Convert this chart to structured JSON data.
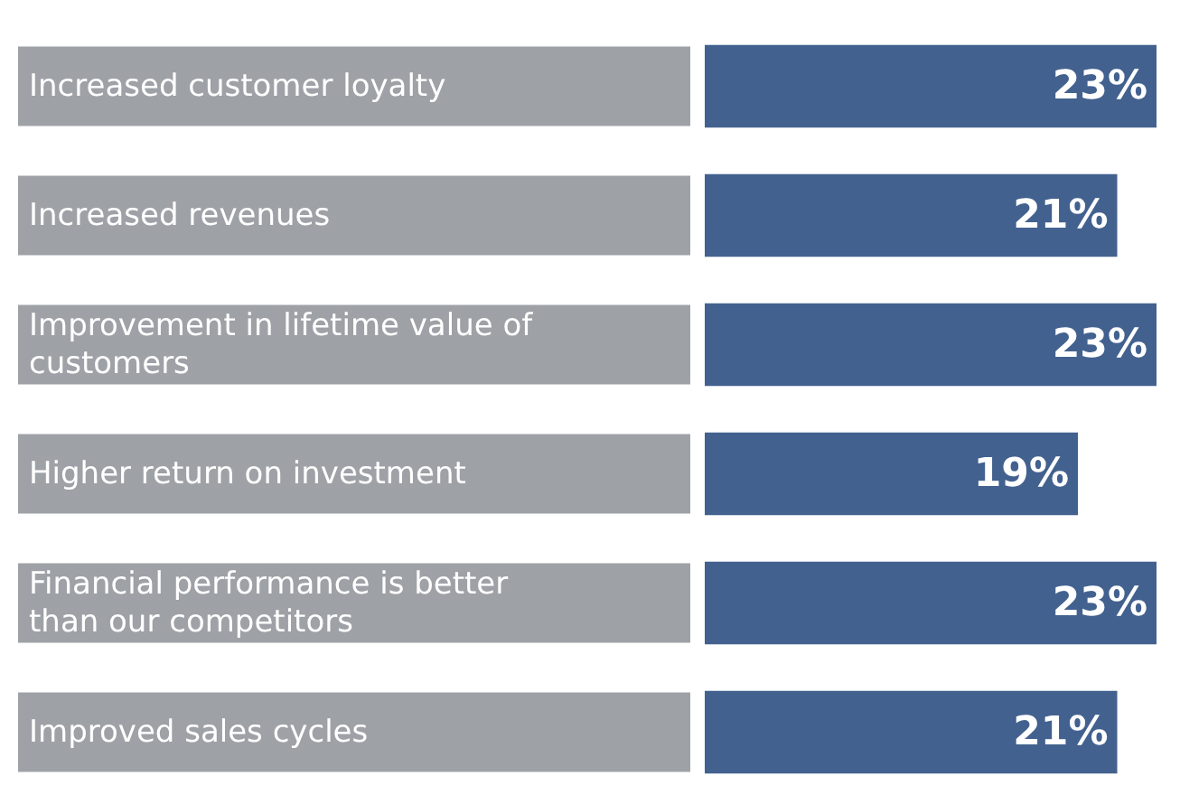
{
  "chart_data": {
    "type": "bar",
    "orientation": "horizontal",
    "categories": [
      "Increased customer loyalty",
      "Increased revenues",
      "Improvement in lifetime value of customers",
      "Higher return on investment",
      "Financial performance is better than our competitors",
      "Improved sales cycles"
    ],
    "values": [
      23,
      21,
      23,
      19,
      23,
      21
    ],
    "color": "#42618f",
    "value_labels": [
      "23%",
      "21%",
      "23%",
      "19%",
      "23%",
      "21%"
    ]
  }
}
